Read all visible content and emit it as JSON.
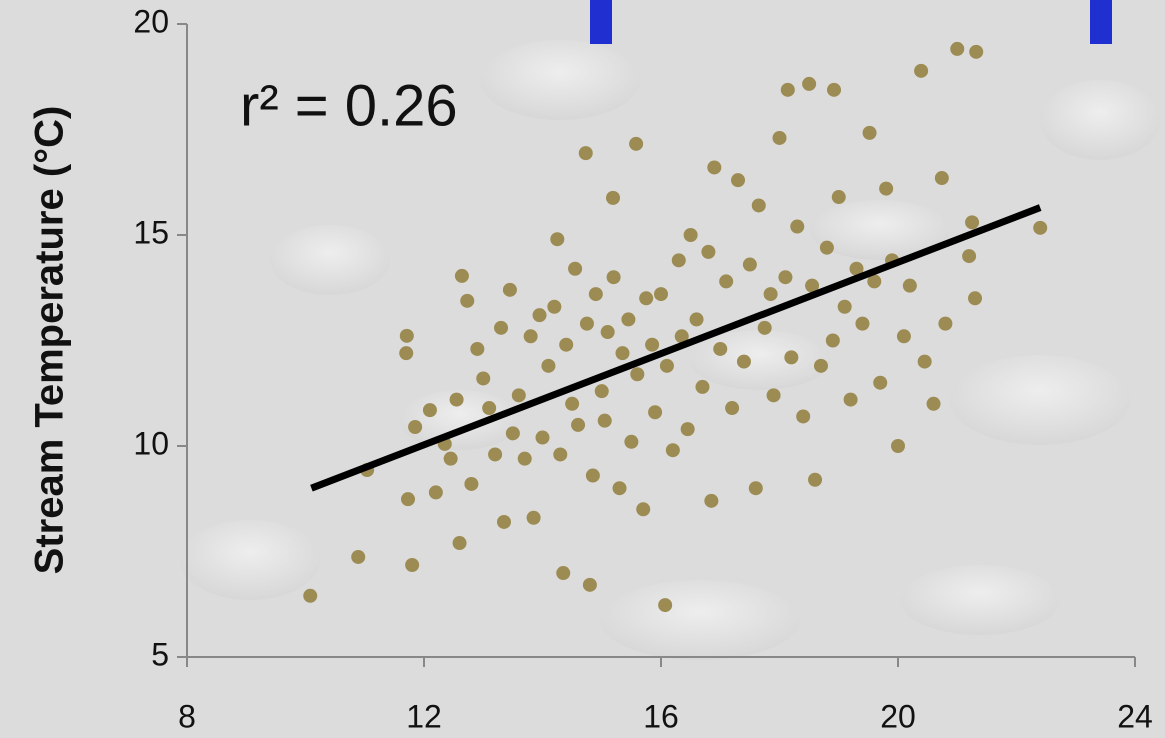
{
  "chart_data": {
    "type": "scatter",
    "ylabel": "Stream Temperature (°C)",
    "annotation": "r² = 0.26",
    "xlim": [
      8,
      24
    ],
    "xticks": [
      8,
      12,
      16,
      20,
      24
    ],
    "ylim": [
      5,
      20
    ],
    "yticks": [
      5,
      10,
      15,
      20
    ],
    "series": [
      {
        "color": "#9c8b52",
        "x": [
          10.08,
          10.89,
          11.04,
          11.73,
          11.8,
          11.71,
          11.7,
          11.85,
          12.1,
          12.2,
          12.35,
          12.45,
          12.64,
          12.73,
          12.55,
          12.6,
          12.8,
          12.9,
          13.0,
          13.1,
          13.2,
          13.3,
          13.35,
          13.45,
          13.5,
          13.6,
          13.7,
          13.8,
          13.85,
          13.95,
          14.0,
          14.1,
          14.2,
          14.25,
          14.3,
          14.35,
          14.4,
          14.5,
          14.55,
          14.6,
          14.73,
          14.75,
          14.8,
          14.85,
          14.9,
          15.0,
          15.05,
          15.1,
          15.19,
          15.2,
          15.3,
          15.35,
          15.45,
          15.5,
          15.58,
          15.6,
          15.7,
          15.75,
          15.85,
          15.9,
          16.07,
          16.0,
          16.1,
          16.2,
          16.3,
          16.35,
          16.45,
          16.5,
          16.6,
          16.7,
          16.8,
          16.85,
          16.9,
          17.0,
          17.1,
          17.2,
          17.3,
          17.4,
          17.5,
          17.6,
          17.65,
          17.75,
          17.85,
          17.9,
          18.0,
          18.14,
          18.1,
          18.2,
          18.3,
          18.4,
          18.5,
          18.55,
          18.6,
          18.7,
          18.8,
          18.92,
          18.9,
          19.0,
          19.1,
          19.2,
          19.3,
          19.4,
          19.52,
          19.6,
          19.7,
          19.8,
          19.9,
          20.0,
          20.1,
          20.2,
          20.39,
          20.45,
          20.6,
          20.74,
          20.8,
          21.0,
          21.2,
          21.3,
          21.32,
          21.25,
          22.4
        ],
        "y": [
          6.45,
          7.37,
          9.43,
          8.74,
          7.18,
          12.61,
          12.2,
          10.45,
          10.85,
          8.9,
          10.05,
          9.7,
          14.03,
          13.44,
          11.1,
          7.7,
          9.1,
          12.3,
          11.6,
          10.9,
          9.8,
          12.8,
          8.2,
          13.7,
          10.3,
          11.2,
          9.7,
          12.6,
          8.3,
          13.1,
          10.2,
          11.9,
          13.3,
          14.9,
          9.8,
          6.99,
          12.4,
          11.0,
          14.2,
          10.5,
          16.94,
          12.9,
          6.71,
          9.3,
          13.6,
          11.3,
          10.6,
          12.7,
          15.88,
          14.0,
          9.0,
          12.2,
          13.0,
          10.1,
          17.16,
          11.7,
          8.5,
          13.5,
          12.4,
          10.8,
          6.23,
          13.6,
          11.9,
          9.9,
          14.4,
          12.6,
          10.4,
          15.0,
          13.0,
          11.4,
          14.6,
          8.7,
          16.6,
          12.3,
          13.9,
          10.9,
          16.3,
          12.0,
          14.3,
          9.0,
          15.7,
          12.8,
          13.6,
          11.2,
          17.3,
          18.44,
          14.0,
          12.1,
          15.2,
          10.7,
          18.58,
          13.8,
          9.2,
          11.9,
          14.7,
          18.44,
          12.5,
          15.9,
          13.3,
          11.1,
          14.2,
          12.9,
          17.42,
          13.9,
          11.5,
          16.1,
          14.4,
          10.0,
          12.6,
          13.8,
          18.89,
          12.0,
          11.0,
          16.35,
          12.9,
          19.41,
          14.5,
          13.5,
          19.34,
          15.3,
          15.17
        ]
      }
    ],
    "trendline": {
      "color": "#000000",
      "x": [
        10.1,
        22.4
      ],
      "y": [
        9.0,
        15.65
      ]
    }
  }
}
